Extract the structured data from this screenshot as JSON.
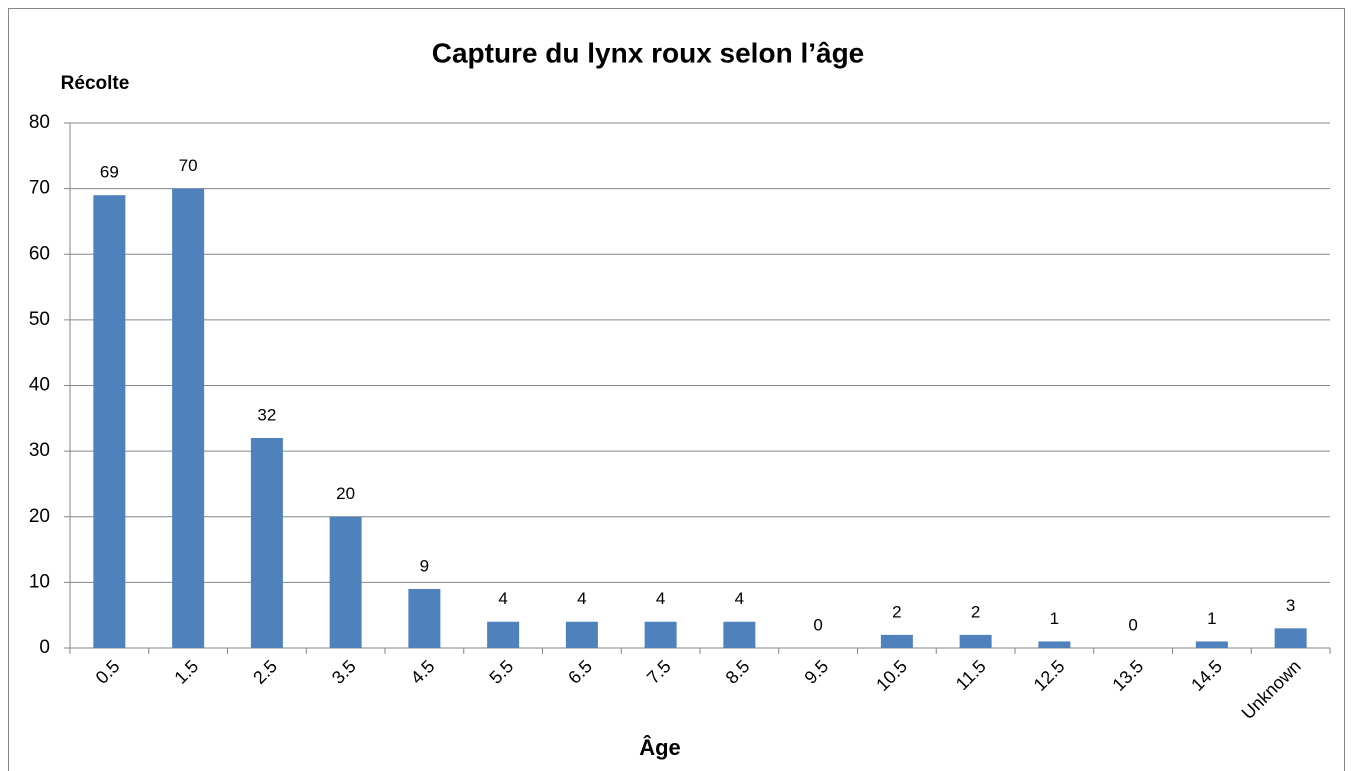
{
  "chart_data": {
    "type": "bar",
    "title": "Capture du lynx roux selon l’âge",
    "y_label": "Récolte",
    "x_label": "Âge",
    "categories": [
      "0.5",
      "1.5",
      "2.5",
      "3.5",
      "4.5",
      "5.5",
      "6.5",
      "7.5",
      "8.5",
      "9.5",
      "10.5",
      "11.5",
      "12.5",
      "13.5",
      "14.5",
      "Unknown"
    ],
    "values": [
      69,
      70,
      32,
      20,
      9,
      4,
      4,
      4,
      4,
      0,
      2,
      2,
      1,
      0,
      1,
      3
    ],
    "color": "#4f81bd",
    "ylim": [
      0,
      80
    ],
    "yticks": [
      0,
      10,
      20,
      30,
      40,
      50,
      60,
      70,
      80
    ],
    "grid": true
  }
}
